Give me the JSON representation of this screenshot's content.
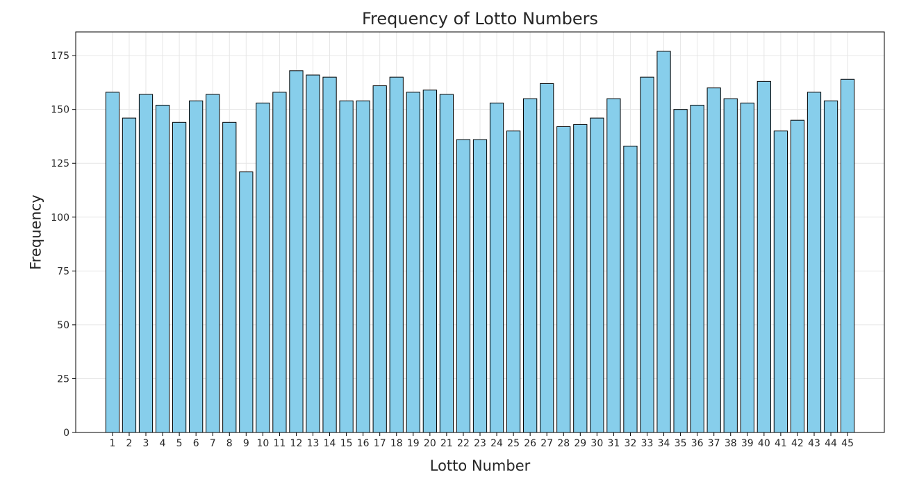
{
  "chart_data": {
    "type": "bar",
    "title": "Frequency of Lotto Numbers",
    "xlabel": "Lotto Number",
    "ylabel": "Frequency",
    "categories": [
      "1",
      "2",
      "3",
      "4",
      "5",
      "6",
      "7",
      "8",
      "9",
      "10",
      "11",
      "12",
      "13",
      "14",
      "15",
      "16",
      "17",
      "18",
      "19",
      "20",
      "21",
      "22",
      "23",
      "24",
      "25",
      "26",
      "27",
      "28",
      "29",
      "30",
      "31",
      "32",
      "33",
      "34",
      "35",
      "36",
      "37",
      "38",
      "39",
      "40",
      "41",
      "42",
      "43",
      "44",
      "45"
    ],
    "values": [
      158,
      146,
      157,
      152,
      144,
      154,
      157,
      144,
      121,
      153,
      158,
      168,
      166,
      165,
      154,
      154,
      161,
      165,
      158,
      159,
      157,
      136,
      136,
      153,
      140,
      155,
      162,
      142,
      143,
      146,
      155,
      133,
      165,
      177,
      150,
      152,
      160,
      155,
      153,
      163,
      140,
      145,
      158,
      154,
      164
    ],
    "ylim": [
      0,
      186
    ],
    "yticks": [
      0,
      25,
      50,
      75,
      100,
      125,
      150,
      175
    ],
    "grid": true,
    "colors": {
      "bar_fill": "#87ceeb",
      "bar_edge": "#000000",
      "grid": "#e6e6e6"
    }
  }
}
